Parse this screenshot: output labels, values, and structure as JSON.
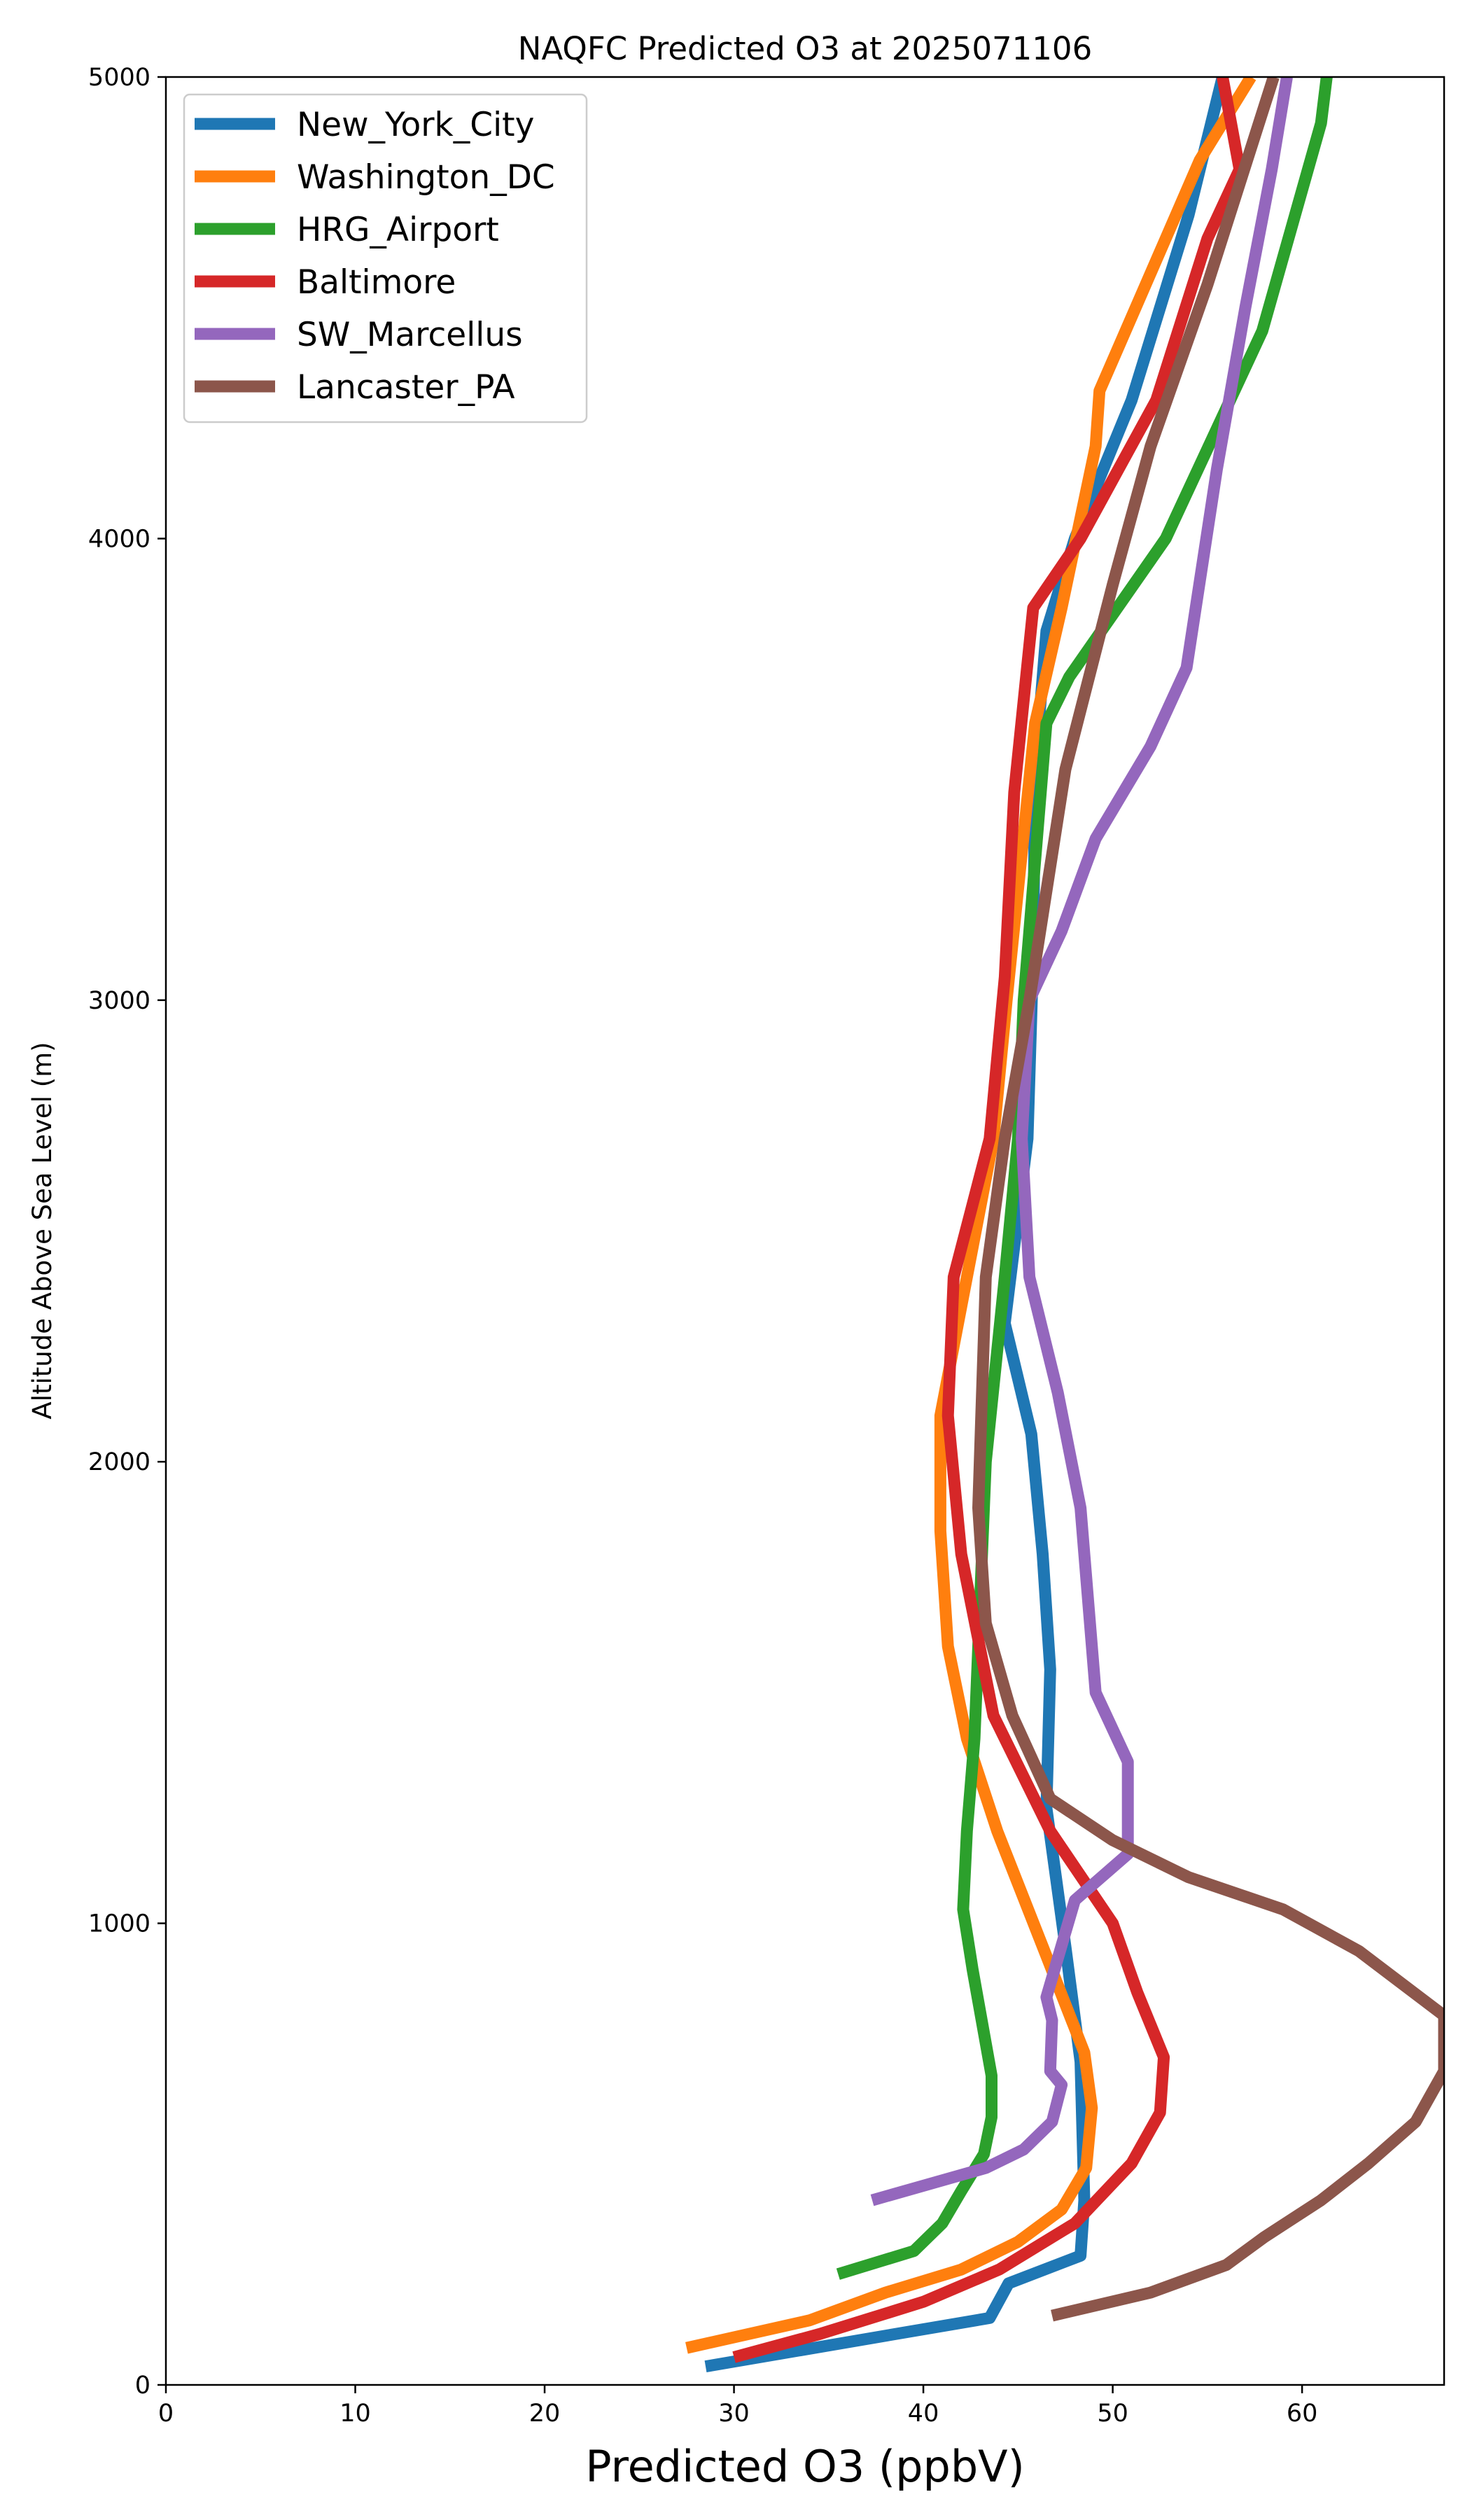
{
  "chart_data": {
    "type": "line",
    "title": "NAQFC Predicted O3 at 2025071106",
    "xlabel": "Predicted O3 (ppbV)",
    "ylabel": "Altitude Above Sea Level (m)",
    "xlim": [
      0,
      67.5
    ],
    "ylim": [
      0,
      5000
    ],
    "xticks": [
      "0",
      "10",
      "20",
      "30",
      "40",
      "50",
      "60"
    ],
    "yticks": [
      "0",
      "1000",
      "2000",
      "3000",
      "4000",
      "5000"
    ],
    "grid": false,
    "legend_position": "top-left",
    "series": [
      {
        "name": "New_York_City",
        "color": "#1f77b4",
        "points": [
          [
            28.5,
            40
          ],
          [
            43.5,
            145
          ],
          [
            44.5,
            220
          ],
          [
            48.3,
            280
          ],
          [
            48.5,
            400
          ],
          [
            48.3,
            700
          ],
          [
            47.5,
            950
          ],
          [
            46.5,
            1250
          ],
          [
            46.7,
            1550
          ],
          [
            46.3,
            1800
          ],
          [
            45.7,
            2060
          ],
          [
            44.3,
            2300
          ],
          [
            45.5,
            2700
          ],
          [
            45.8,
            3100
          ],
          [
            45.9,
            3500
          ],
          [
            46.5,
            3800
          ],
          [
            48.0,
            4000
          ],
          [
            51.0,
            4300
          ],
          [
            54.0,
            4700
          ],
          [
            55.8,
            5000
          ]
        ]
      },
      {
        "name": "Washington_DC",
        "color": "#ff7f0e",
        "points": [
          [
            27.5,
            80
          ],
          [
            34.0,
            140
          ],
          [
            38.0,
            200
          ],
          [
            42.0,
            250
          ],
          [
            45.0,
            310
          ],
          [
            47.3,
            380
          ],
          [
            48.6,
            470
          ],
          [
            48.9,
            600
          ],
          [
            48.5,
            720
          ],
          [
            46.3,
            950
          ],
          [
            43.9,
            1200
          ],
          [
            42.3,
            1400
          ],
          [
            41.3,
            1600
          ],
          [
            40.9,
            1850
          ],
          [
            40.9,
            2100
          ],
          [
            42.3,
            2400
          ],
          [
            43.7,
            2700
          ],
          [
            44.4,
            3000
          ],
          [
            45.9,
            3600
          ],
          [
            47.3,
            3850
          ],
          [
            49.1,
            4200
          ],
          [
            49.3,
            4320
          ],
          [
            54.6,
            4820
          ],
          [
            57.3,
            5000
          ]
        ]
      },
      {
        "name": "HRG_Airport",
        "color": "#2ca02c",
        "points": [
          [
            35.5,
            240
          ],
          [
            39.5,
            290
          ],
          [
            41.0,
            350
          ],
          [
            42.0,
            420
          ],
          [
            43.2,
            500
          ],
          [
            43.6,
            580
          ],
          [
            43.6,
            670
          ],
          [
            42.6,
            900
          ],
          [
            42.1,
            1030
          ],
          [
            42.3,
            1200
          ],
          [
            42.7,
            1400
          ],
          [
            43.3,
            2000
          ],
          [
            44.3,
            2400
          ],
          [
            45.0,
            2700
          ],
          [
            45.3,
            3000
          ],
          [
            46.5,
            3600
          ],
          [
            47.7,
            3700
          ],
          [
            52.8,
            4000
          ],
          [
            57.9,
            4450
          ],
          [
            61.0,
            4900
          ],
          [
            61.3,
            5000
          ]
        ]
      },
      {
        "name": "Baltimore",
        "color": "#d62728",
        "points": [
          [
            30.0,
            60
          ],
          [
            34.5,
            110
          ],
          [
            40.0,
            180
          ],
          [
            44.0,
            250
          ],
          [
            48.0,
            350
          ],
          [
            51.0,
            480
          ],
          [
            52.5,
            590
          ],
          [
            52.7,
            710
          ],
          [
            51.3,
            850
          ],
          [
            50.0,
            1000
          ],
          [
            46.7,
            1200
          ],
          [
            43.7,
            1450
          ],
          [
            42.0,
            1800
          ],
          [
            41.3,
            2100
          ],
          [
            41.6,
            2400
          ],
          [
            43.5,
            2700
          ],
          [
            44.3,
            3050
          ],
          [
            44.8,
            3450
          ],
          [
            45.8,
            3850
          ],
          [
            48.3,
            4000
          ],
          [
            52.3,
            4300
          ],
          [
            55.0,
            4650
          ],
          [
            56.7,
            4800
          ],
          [
            55.8,
            5000
          ]
        ]
      },
      {
        "name": "SW_Marcellus",
        "color": "#9467bd",
        "points": [
          [
            37.3,
            400
          ],
          [
            43.3,
            470
          ],
          [
            45.3,
            510
          ],
          [
            46.8,
            570
          ],
          [
            47.3,
            650
          ],
          [
            46.7,
            680
          ],
          [
            46.8,
            790
          ],
          [
            46.5,
            840
          ],
          [
            48.0,
            1050
          ],
          [
            50.8,
            1150
          ],
          [
            50.8,
            1350
          ],
          [
            49.1,
            1500
          ],
          [
            48.7,
            1700
          ],
          [
            48.3,
            1900
          ],
          [
            47.1,
            2150
          ],
          [
            45.6,
            2400
          ],
          [
            45.2,
            2700
          ],
          [
            45.6,
            3000
          ],
          [
            47.3,
            3150
          ],
          [
            49.1,
            3350
          ],
          [
            52.0,
            3550
          ],
          [
            53.9,
            3720
          ],
          [
            55.5,
            4150
          ],
          [
            57.0,
            4500
          ],
          [
            58.4,
            4800
          ],
          [
            59.2,
            5000
          ]
        ]
      },
      {
        "name": "Lancaster_PA",
        "color": "#8c564b",
        "points": [
          [
            46.8,
            150
          ],
          [
            52.0,
            200
          ],
          [
            56.0,
            260
          ],
          [
            58.0,
            320
          ],
          [
            61.0,
            400
          ],
          [
            63.5,
            480
          ],
          [
            66.0,
            570
          ],
          [
            67.5,
            680
          ],
          [
            67.5,
            800
          ],
          [
            63.0,
            940
          ],
          [
            59.0,
            1030
          ],
          [
            54.0,
            1100
          ],
          [
            50.0,
            1180
          ],
          [
            46.7,
            1270
          ],
          [
            44.7,
            1450
          ],
          [
            43.3,
            1650
          ],
          [
            42.9,
            1900
          ],
          [
            43.3,
            2400
          ],
          [
            44.3,
            2700
          ],
          [
            45.6,
            3000
          ],
          [
            47.5,
            3500
          ],
          [
            50.0,
            3900
          ],
          [
            52.0,
            4200
          ],
          [
            55.0,
            4550
          ],
          [
            58.5,
            5000
          ]
        ]
      }
    ]
  }
}
